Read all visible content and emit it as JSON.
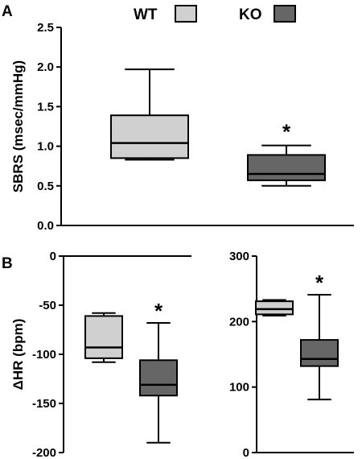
{
  "panels": {
    "a": "A",
    "b": "B"
  },
  "legend": [
    {
      "label": "WT",
      "color": "#d0d0d0"
    },
    {
      "label": "KO",
      "color": "#666666"
    }
  ],
  "chart_data": [
    {
      "type": "box",
      "panel": "A",
      "ylabel": "SBRS (msec/mmHg)",
      "ylim": [
        0,
        2.5
      ],
      "yticks": [
        "0.0",
        "0.5",
        "1.0",
        "1.5",
        "2.0",
        "2.5"
      ],
      "yticks_values": [
        0,
        0.5,
        1.0,
        1.5,
        2.0,
        2.5
      ],
      "grid": false,
      "boxes": [
        {
          "group": "WT",
          "whisker_low": 0.83,
          "q1": 0.85,
          "median": 1.04,
          "q3": 1.39,
          "whisker_high": 1.97,
          "color": "#d0d0d0"
        },
        {
          "group": "KO",
          "whisker_low": 0.5,
          "q1": 0.57,
          "median": 0.65,
          "q3": 0.89,
          "whisker_high": 1.01,
          "color": "#666666"
        }
      ],
      "annotations": [
        {
          "text": "*",
          "group": "KO"
        }
      ]
    },
    {
      "type": "box",
      "panel": "B-left",
      "ylabel": "ΔHR (bpm)",
      "ylim": [
        -200,
        0
      ],
      "yticks": [
        "-200",
        "-150",
        "-100",
        "-50",
        "0"
      ],
      "yticks_values": [
        -200,
        -150,
        -100,
        -50,
        0
      ],
      "grid": false,
      "boxes": [
        {
          "group": "WT",
          "whisker_low": -108,
          "q1": -104,
          "median": -93,
          "q3": -61,
          "whisker_high": -58,
          "color": "#d0d0d0"
        },
        {
          "group": "KO",
          "whisker_low": -190,
          "q1": -142,
          "median": -131,
          "q3": -106,
          "whisker_high": -68,
          "color": "#666666"
        }
      ],
      "annotations": [
        {
          "text": "*",
          "group": "KO"
        }
      ]
    },
    {
      "type": "box",
      "panel": "B-right",
      "ylabel": "",
      "ylim": [
        0,
        300
      ],
      "yticks": [
        "0",
        "100",
        "200",
        "300"
      ],
      "yticks_values": [
        0,
        100,
        200,
        300
      ],
      "grid": false,
      "boxes": [
        {
          "group": "WT",
          "whisker_low": 209,
          "q1": 211,
          "median": 219,
          "q3": 231,
          "whisker_high": 233,
          "color": "#d0d0d0"
        },
        {
          "group": "KO",
          "whisker_low": 81,
          "q1": 132,
          "median": 143,
          "q3": 172,
          "whisker_high": 241,
          "color": "#666666"
        }
      ],
      "annotations": [
        {
          "text": "*",
          "group": "KO"
        }
      ]
    }
  ]
}
